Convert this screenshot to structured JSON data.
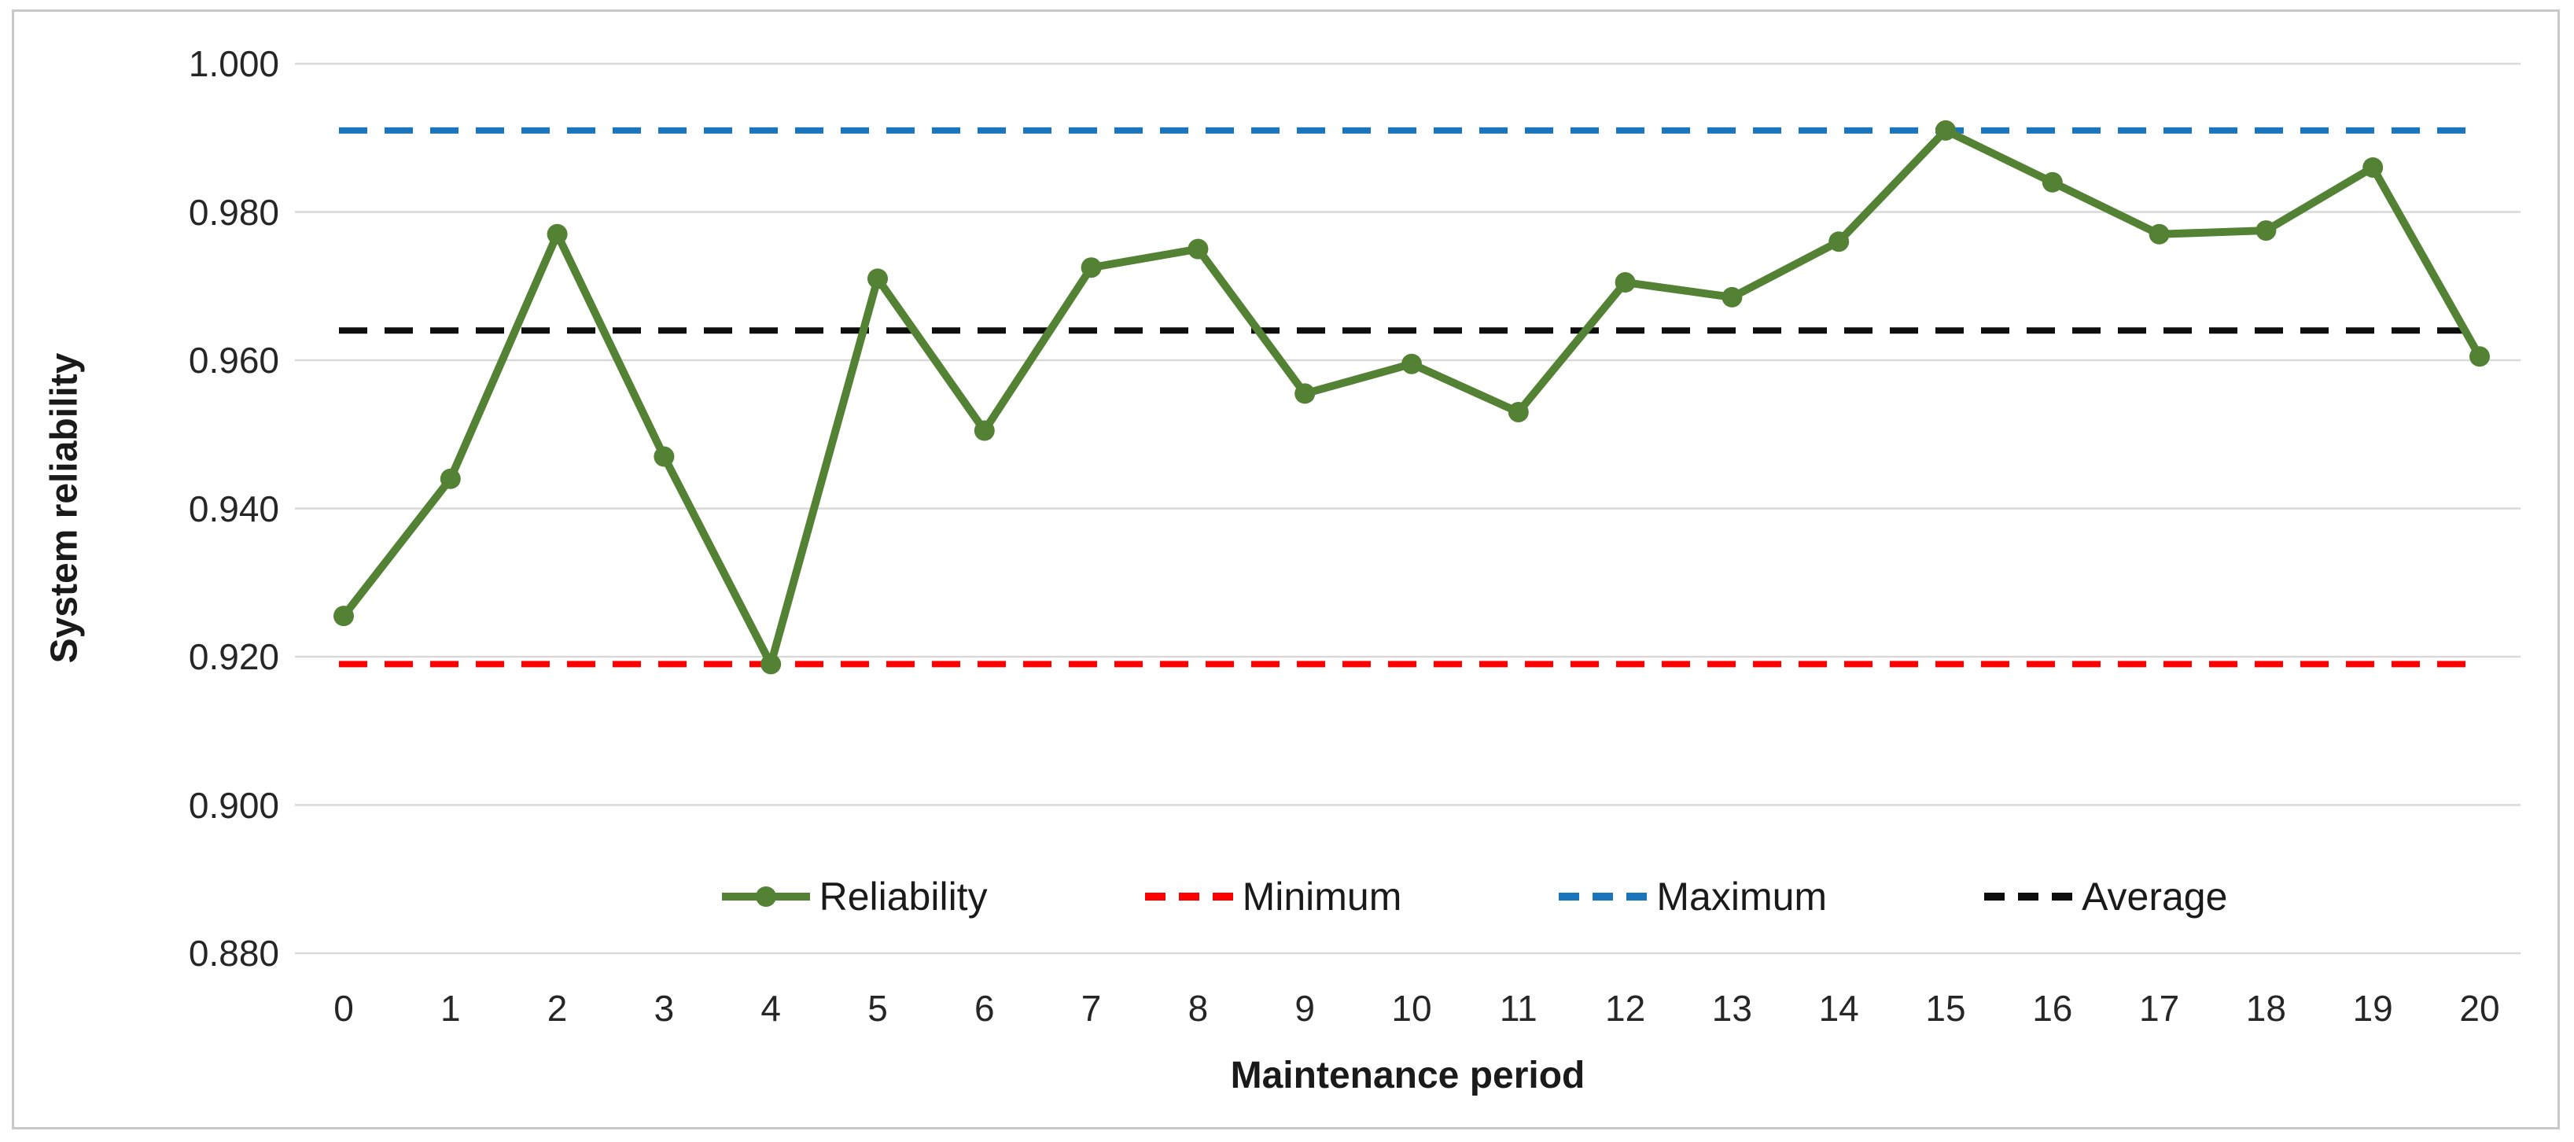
{
  "chart_data": {
    "type": "line",
    "title": "",
    "xlabel": "Maintenance period",
    "ylabel": "System reliability",
    "categories": [
      0,
      1,
      2,
      3,
      4,
      5,
      6,
      7,
      8,
      9,
      10,
      11,
      12,
      13,
      14,
      15,
      16,
      17,
      18,
      19,
      20
    ],
    "series": [
      {
        "name": "Reliability",
        "kind": "data-line",
        "color": "#548235",
        "marker": "circle",
        "line_style": "solid",
        "values": [
          0.9255,
          0.944,
          0.977,
          0.947,
          0.919,
          0.971,
          0.9505,
          0.9725,
          0.975,
          0.9555,
          0.9595,
          0.953,
          0.9705,
          0.9685,
          0.976,
          0.991,
          0.984,
          0.977,
          0.9775,
          0.986,
          0.9605
        ]
      },
      {
        "name": "Minimum",
        "kind": "reference-line",
        "color": "#FE0000",
        "line_style": "dashed",
        "value": 0.919
      },
      {
        "name": "Maximum",
        "kind": "reference-line",
        "color": "#1B75BC",
        "line_style": "dashed",
        "value": 0.991
      },
      {
        "name": "Average",
        "kind": "reference-line",
        "color": "#0D0D0D",
        "line_style": "dashed",
        "value": 0.964
      }
    ],
    "ylim": [
      0.88,
      1.0
    ],
    "y_ticks": [
      {
        "value": 1.0,
        "label": "1.000"
      },
      {
        "value": 0.98,
        "label": "0.980"
      },
      {
        "value": 0.96,
        "label": "0.960"
      },
      {
        "value": 0.94,
        "label": "0.940"
      },
      {
        "value": 0.92,
        "label": "0.920"
      },
      {
        "value": 0.9,
        "label": "0.900"
      },
      {
        "value": 0.88,
        "label": "0.880"
      }
    ],
    "grid": "horizontal",
    "legend_position": "bottom-center-inside",
    "colors": {
      "gridline": "#D9D9D9",
      "frame_border": "#C9C9C9",
      "text": "#262626",
      "background": "#FFFFFF"
    }
  }
}
